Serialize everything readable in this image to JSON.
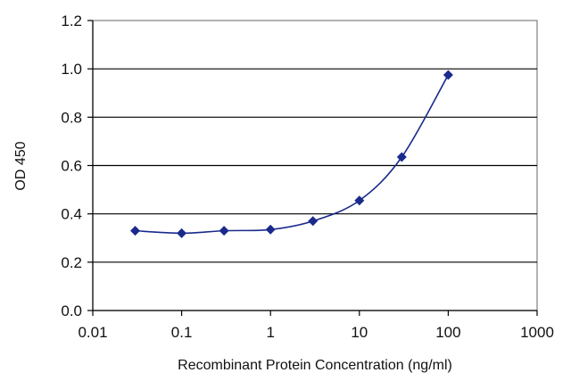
{
  "chart_data": {
    "type": "line",
    "title": "",
    "xlabel": "Recombinant Protein Concentration (ng/ml)",
    "ylabel": "OD 450",
    "x_scale": "log",
    "xlim": [
      0.01,
      1000
    ],
    "ylim": [
      0,
      1.2
    ],
    "x_ticks": [
      "0.01",
      "0.1",
      "1",
      "10",
      "100",
      "1000"
    ],
    "y_ticks": [
      "0.0",
      "0.2",
      "0.4",
      "0.6",
      "0.8",
      "1.0",
      "1.2"
    ],
    "grid": "horizontal",
    "legend": "none",
    "series": [
      {
        "color": "#1a2a8c",
        "marker": "diamond",
        "x": [
          0.03,
          0.1,
          0.3,
          1,
          3,
          10,
          30,
          100
        ],
        "y": [
          0.33,
          0.32,
          0.33,
          0.335,
          0.37,
          0.455,
          0.635,
          0.975
        ]
      }
    ]
  }
}
